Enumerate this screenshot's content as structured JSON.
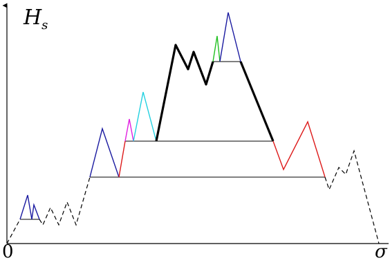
{
  "labels": {
    "y_axis_main": "H",
    "y_axis_sub": "s",
    "origin": "0",
    "sigma": "σ"
  },
  "colors": {
    "axis": "#000000",
    "excursion": "#000000",
    "blue": "#1a1aa0",
    "red": "#dd1a1a",
    "magenta": "#e020e0",
    "cyan": "#20d0e0",
    "green": "#20c020"
  }
}
